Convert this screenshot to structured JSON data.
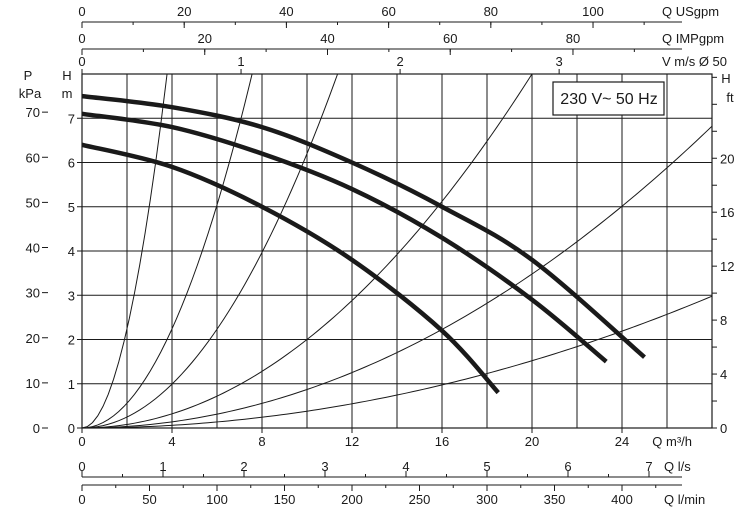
{
  "chart_data": {
    "type": "line",
    "title": "",
    "badge": "230 V~ 50 Hz",
    "grid": true,
    "x": {
      "label": "Q m³/h",
      "range": [
        0,
        28
      ],
      "ticks": [
        0,
        4,
        8,
        12,
        16,
        20,
        24
      ]
    },
    "y_left_m": {
      "label_top": "H",
      "label_unit": "m",
      "range": [
        0,
        8
      ],
      "ticks": [
        0,
        1,
        2,
        3,
        4,
        5,
        6,
        7
      ]
    },
    "y_left_kpa": {
      "label_top": "P",
      "label_unit": "kPa",
      "range_kpa": [
        0,
        78.45
      ],
      "ticks": [
        0,
        10,
        20,
        30,
        40,
        50,
        60,
        70
      ]
    },
    "y_right_ft": {
      "label_top": "H",
      "label_unit": "ft",
      "range_ft": [
        0,
        26.25
      ],
      "ticks": [
        0,
        4,
        8,
        12,
        16,
        20
      ]
    },
    "top_axes": [
      {
        "label": "Q USgpm",
        "ticks": [
          0,
          20,
          40,
          60,
          80,
          100
        ],
        "per_m3h": 4.4029
      },
      {
        "label": "Q IMPgpm",
        "ticks": [
          0,
          20,
          40,
          60,
          80
        ],
        "per_m3h": 3.6662
      },
      {
        "label": "V m/s Ø 50",
        "ticks": [
          0,
          1,
          2,
          3
        ],
        "per_m3h": 0.14147
      }
    ],
    "bottom_axes": [
      {
        "label": "Q l/s",
        "ticks": [
          0,
          1,
          2,
          3,
          4,
          5,
          6,
          7
        ],
        "per_m3h": 0.27778
      },
      {
        "label": "Q l/min",
        "ticks": [
          0,
          50,
          100,
          150,
          200,
          250,
          300,
          350,
          400
        ],
        "per_m3h": 16.6667
      }
    ],
    "series": [
      {
        "x": [
          0,
          4,
          8,
          12,
          16,
          18.5
        ],
        "y": [
          6.4,
          5.9,
          5.0,
          3.8,
          2.2,
          0.8
        ]
      },
      {
        "x": [
          0,
          4,
          8,
          12,
          16,
          20,
          23.3
        ],
        "y": [
          7.1,
          6.8,
          6.2,
          5.4,
          4.3,
          2.9,
          1.5
        ]
      },
      {
        "x": [
          0,
          4,
          8,
          12,
          16,
          20,
          25
        ],
        "y": [
          7.5,
          7.25,
          6.8,
          6.0,
          5.0,
          3.8,
          1.6
        ]
      }
    ],
    "system_curves": [
      {
        "k": 0.56,
        "pass": [
          6.7,
          8.0
        ]
      },
      {
        "k": 0.14,
        "pass": [
          14.1,
          8.0
        ]
      },
      {
        "k": 0.062,
        "pass": [
          21.2,
          8.0
        ]
      },
      {
        "k": 0.02,
        "pass": [
          28,
          7.0
        ]
      },
      {
        "k": 0.0087,
        "pass": [
          28,
          4.7
        ]
      },
      {
        "k": 0.0038,
        "pass": [
          28,
          2.4
        ]
      }
    ]
  }
}
